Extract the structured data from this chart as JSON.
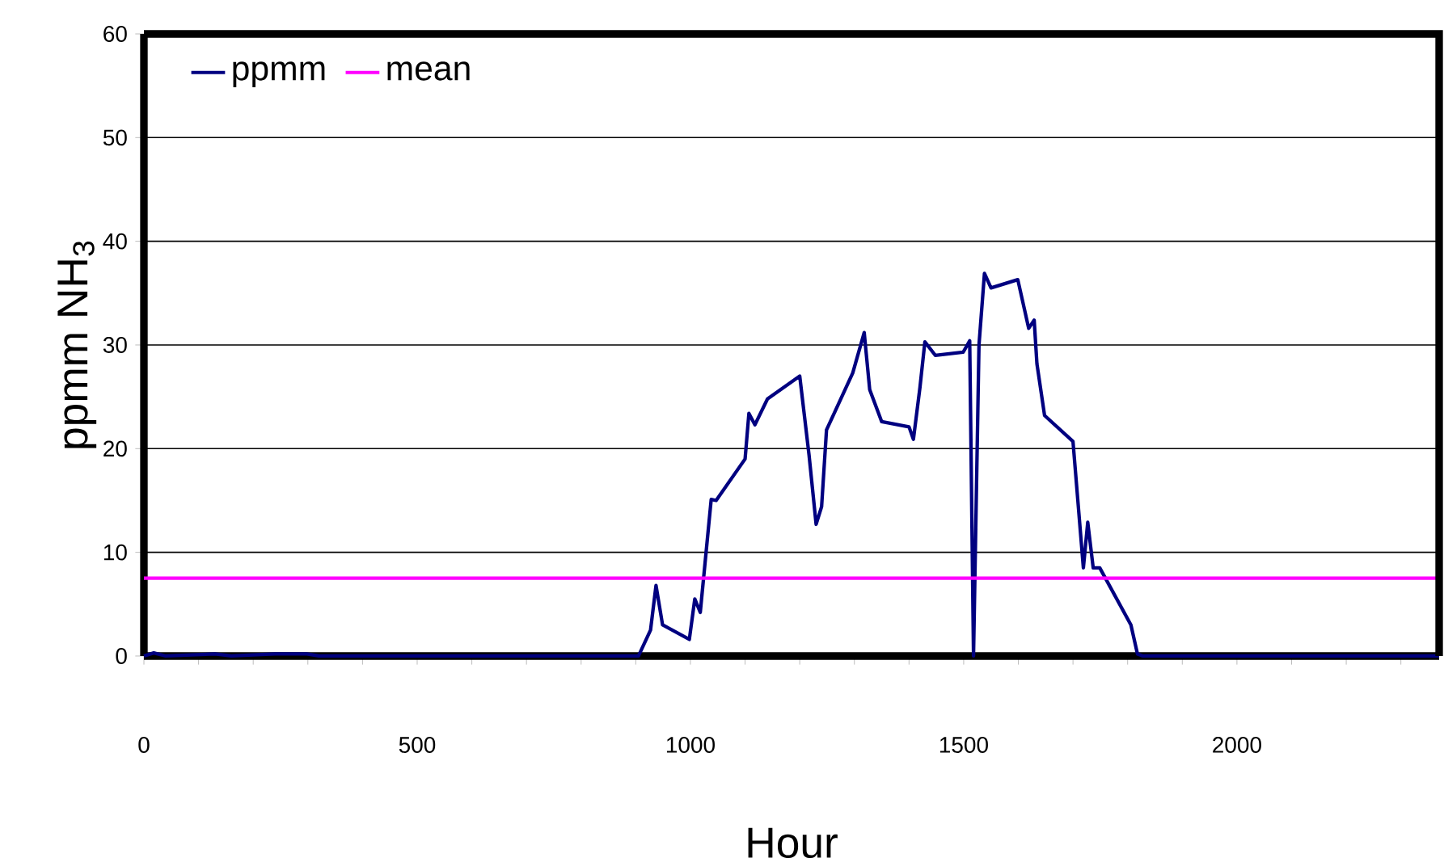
{
  "chart_data": {
    "type": "line",
    "xlabel": "Hour",
    "ylabel": "ppmm NH$_{3}$",
    "xlim": [
      0,
      2370
    ],
    "ylim": [
      0,
      60
    ],
    "xticks": [
      0,
      {
        "value": 100,
        "label": null
      },
      {
        "value": 200,
        "label": null
      },
      {
        "value": 300,
        "label": null
      },
      {
        "value": 400,
        "label": null
      },
      500,
      {
        "value": 600,
        "label": null
      },
      {
        "value": 700,
        "label": null
      },
      {
        "value": 800,
        "label": null
      },
      {
        "value": 900,
        "label": null
      },
      1000,
      {
        "value": 1100,
        "label": null
      },
      {
        "value": 1200,
        "label": null
      },
      {
        "value": 1300,
        "label": null
      },
      {
        "value": 1400,
        "label": null
      },
      1500,
      {
        "value": 1600,
        "label": null
      },
      {
        "value": 1700,
        "label": null
      },
      {
        "value": 1800,
        "label": null
      },
      {
        "value": 1900,
        "label": null
      },
      2000,
      {
        "value": 2100,
        "label": null
      },
      {
        "value": 2200,
        "label": null
      },
      {
        "value": 2300,
        "label": null
      }
    ],
    "yticks": [
      0,
      10,
      20,
      30,
      40,
      50,
      60
    ],
    "grid": "y",
    "legend": "top left",
    "line_style": "solid",
    "marker": "none",
    "series": [
      {
        "name": "ppmm",
        "color": "#000080",
        "x": [
          0,
          18,
          40,
          130,
          160,
          240,
          298,
          320,
          905,
          927,
          937,
          949,
          998,
          1008,
          1018,
          1038,
          1047,
          1100,
          1107,
          1118,
          1141,
          1200,
          1217,
          1230,
          1240,
          1249,
          1297,
          1318,
          1328,
          1350,
          1400,
          1408,
          1420,
          1429,
          1448,
          1499,
          1511,
          1518,
          1528,
          1538,
          1550,
          1599,
          1619,
          1629,
          1634,
          1648,
          1700,
          1719,
          1727,
          1737,
          1749,
          1806,
          1818,
          1828,
          2370
        ],
        "values": [
          0,
          0.3,
          0,
          0.2,
          0,
          0.2,
          0.2,
          0,
          0,
          2.5,
          6.8,
          3.0,
          1.6,
          5.5,
          4.2,
          15.1,
          15.0,
          19.0,
          23.4,
          22.3,
          24.8,
          27.0,
          19.4,
          12.7,
          14.4,
          21.8,
          27.3,
          31.2,
          25.7,
          22.6,
          22.1,
          20.9,
          25.9,
          30.3,
          29.0,
          29.3,
          30.4,
          0,
          30.0,
          36.9,
          35.5,
          36.3,
          31.6,
          32.4,
          28.2,
          23.2,
          20.7,
          8.5,
          12.9,
          8.5,
          8.5,
          3.0,
          0.2,
          0,
          0
        ]
      }
    ],
    "ref_lines": [
      {
        "axis": "y",
        "value": 7.5,
        "label": "mean",
        "color": "#ff00ff"
      }
    ]
  }
}
